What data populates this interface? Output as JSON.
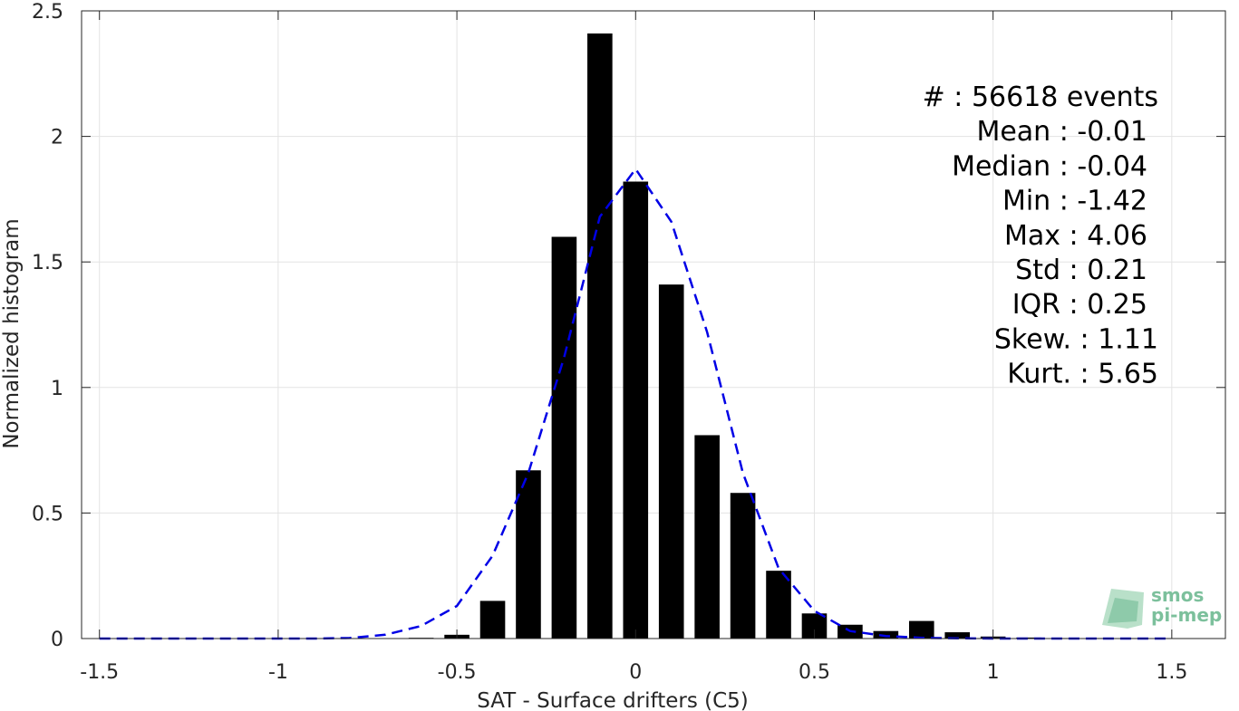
{
  "chart_data": {
    "type": "bar",
    "xlabel": "SAT - Surface drifters (C5)",
    "ylabel": "Normalized histogram",
    "xlim": [
      -1.55,
      1.65
    ],
    "ylim": [
      0,
      2.5
    ],
    "xticks": [
      -1.5,
      -1,
      -0.5,
      0,
      0.5,
      1,
      1.5
    ],
    "xtick_labels": [
      "-1.5",
      "-1",
      "-0.5",
      "0",
      "0.5",
      "1",
      "1.5"
    ],
    "yticks": [
      0,
      0.5,
      1,
      1.5,
      2,
      2.5
    ],
    "ytick_labels": [
      "0",
      "0.5",
      "1",
      "1.5",
      "2",
      "2.5"
    ],
    "grid": true,
    "bar_width": 0.07,
    "bar_color": "#000000",
    "series": [
      {
        "type": "bar",
        "x": [
          -1.5,
          -1.4,
          -1.3,
          -1.2,
          -1.1,
          -1.0,
          -0.9,
          -0.8,
          -0.7,
          -0.6,
          -0.5,
          -0.4,
          -0.3,
          -0.2,
          -0.1,
          0.0,
          0.1,
          0.2,
          0.3,
          0.4,
          0.5,
          0.6,
          0.7,
          0.8,
          0.9,
          1.0,
          1.1,
          1.2,
          1.3,
          1.4,
          1.5
        ],
        "values": [
          0,
          0,
          0,
          0,
          0,
          0,
          0,
          0,
          0,
          0.003,
          0.015,
          0.15,
          0.67,
          1.6,
          2.41,
          1.82,
          1.41,
          0.81,
          0.58,
          0.27,
          0.1,
          0.055,
          0.03,
          0.07,
          0.025,
          0.008,
          0.004,
          0.002,
          0.002,
          0.002,
          0.001
        ]
      },
      {
        "type": "line",
        "style": "dashed",
        "color": "#0000e6",
        "x": [
          -1.5,
          -1.4,
          -1.3,
          -1.2,
          -1.1,
          -1.0,
          -0.9,
          -0.8,
          -0.7,
          -0.6,
          -0.5,
          -0.4,
          -0.3,
          -0.2,
          -0.1,
          0.0,
          0.1,
          0.2,
          0.3,
          0.4,
          0.5,
          0.6,
          0.7,
          0.8,
          0.9,
          1.0,
          1.1,
          1.2,
          1.3,
          1.4,
          1.5
        ],
        "values": [
          0,
          0,
          0,
          0,
          0,
          0,
          0,
          0.002,
          0.015,
          0.05,
          0.13,
          0.33,
          0.66,
          1.12,
          1.68,
          1.87,
          1.66,
          1.22,
          0.66,
          0.28,
          0.11,
          0.03,
          0.01,
          0.003,
          0.001,
          0,
          0,
          0,
          0,
          0,
          0
        ]
      }
    ],
    "annotation": {
      "lines": [
        "#  : 56618 events",
        "Mean : -0.01",
        "Median : -0.04",
        "Min : -1.42",
        "Max : 4.06",
        "Std : 0.21",
        "IQR : 0.25",
        "Skew. : 1.11",
        "Kurt. : 5.65"
      ]
    },
    "logo": {
      "line1": "smos",
      "line2": "pi-mep",
      "color": "#7cc09c"
    }
  }
}
